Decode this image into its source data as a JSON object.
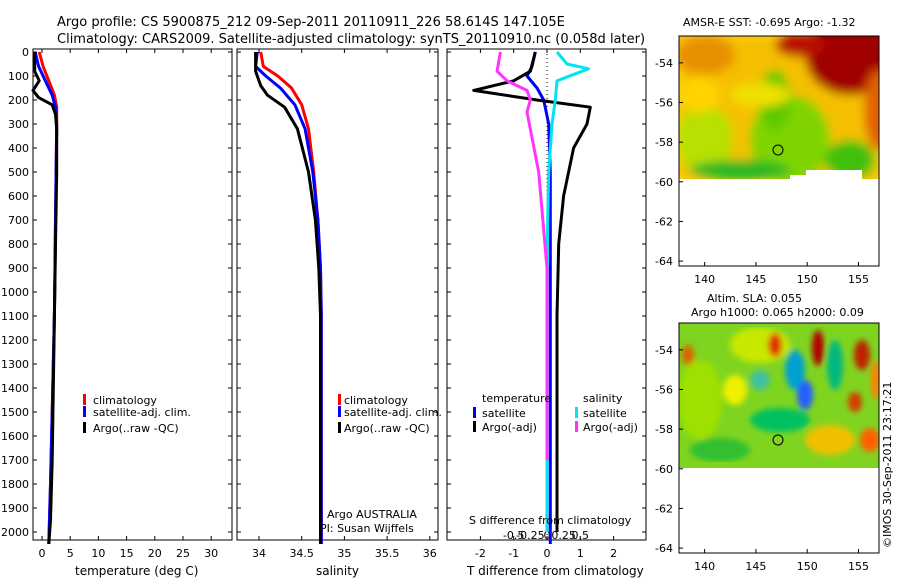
{
  "header": {
    "line1": "Argo profile: CS 5900875_212 09-Sep-2011 20110911_226 58.614S 147.105E",
    "line2": "Climatology: CARS2009. Satellite-adjusted climatology: synTS_20110910.nc (0.058d later)"
  },
  "colors": {
    "climatology": "#ff0000",
    "satellite": "#0000ff",
    "argo": "#000000",
    "satellite_s": "#00e5ee",
    "argo_s": "#ff33ff"
  },
  "depth_axis": {
    "ticks": [
      "0",
      "100",
      "200",
      "300",
      "400",
      "500",
      "600",
      "700",
      "800",
      "900",
      "1000",
      "1100",
      "1200",
      "1300",
      "1400",
      "1500",
      "1600",
      "1700",
      "1800",
      "1900",
      "2000"
    ]
  },
  "temperature_panel": {
    "xlabel": "temperature (deg C)",
    "xticks": [
      "0",
      "5",
      "10",
      "15",
      "20",
      "25",
      "30"
    ],
    "legend": [
      "climatology",
      "satellite-adj. clim.",
      "Argo(..raw -QC)"
    ]
  },
  "salinity_panel": {
    "xlabel": "salinity",
    "xticks": [
      "34",
      "34.5",
      "35",
      "35.5",
      "36"
    ],
    "legend": [
      "climatology",
      "satellite-adj. clim.",
      "Argo(..raw -QC)"
    ],
    "credit1": "Argo AUSTRALIA",
    "credit2": "PI: Susan Wijffels"
  },
  "difference_panel": {
    "xlabel": "T difference from climatology",
    "top_label": "S difference from climatology",
    "xticks_t": [
      "-2",
      "-1",
      "0",
      "1",
      "2"
    ],
    "xticks_s": [
      "-0.5",
      "-0.25",
      "0",
      "0.25",
      "0.5"
    ],
    "legend_t_head": "temperature",
    "legend_s_head": "salinity",
    "legend_t": [
      "satellite",
      "Argo(-adj)"
    ],
    "legend_s": [
      "satellite",
      "Argo(-adj)"
    ]
  },
  "map_sst": {
    "title": "AMSR-E SST: -0.695 Argo: -1.32",
    "xticks": [
      "140",
      "145",
      "150",
      "155"
    ],
    "yticks": [
      "-54",
      "-56",
      "-58",
      "-60",
      "-62",
      "-64"
    ]
  },
  "map_sla": {
    "title1": "Altim. SLA: 0.055",
    "title2": "Argo h1000: 0.065 h2000: 0.09",
    "xticks": [
      "140",
      "145",
      "150",
      "155"
    ],
    "yticks": [
      "-54",
      "-56",
      "-58",
      "-60",
      "-62",
      "-64"
    ]
  },
  "stamp": "©IMOS 30-Sep-2011 23:17:21",
  "chart_data": [
    {
      "type": "line",
      "xlabel": "temperature (deg C)",
      "xlim": [
        -2,
        31
      ],
      "ylim": [
        2050,
        0
      ],
      "series": [
        {
          "name": "climatology",
          "color": "#ff0000",
          "x": [
            -0.5,
            0.2,
            1.2,
            2.2,
            2.6,
            2.6,
            2.5,
            2.4,
            2.3,
            2.2,
            2.0,
            1.8,
            1.5,
            1.2
          ],
          "y": [
            0,
            60,
            120,
            180,
            230,
            300,
            500,
            700,
            900,
            1100,
            1300,
            1500,
            1800,
            2050
          ]
        },
        {
          "name": "satellite-adj. clim.",
          "color": "#0000ff",
          "x": [
            -1.2,
            -0.6,
            0.6,
            1.8,
            2.4,
            2.6,
            2.5,
            2.4,
            2.3,
            2.2,
            2.0,
            1.8,
            1.5,
            1.2
          ],
          "y": [
            0,
            60,
            120,
            180,
            230,
            300,
            500,
            700,
            900,
            1100,
            1300,
            1500,
            1800,
            2050
          ]
        },
        {
          "name": "Argo(..raw -QC)",
          "color": "#000000",
          "x": [
            -1.3,
            -1.3,
            -0.5,
            -1.6,
            -0.6,
            1.8,
            2.4,
            2.6,
            2.6,
            2.4,
            2.2,
            2.0,
            1.8,
            1.5,
            1.2
          ],
          "y": [
            0,
            80,
            120,
            160,
            190,
            220,
            260,
            320,
            500,
            800,
            1100,
            1400,
            1700,
            1950,
            2050
          ]
        }
      ]
    },
    {
      "type": "line",
      "xlabel": "salinity",
      "xlim": [
        33.85,
        36.05
      ],
      "ylim": [
        2050,
        0
      ],
      "series": [
        {
          "name": "climatology",
          "color": "#ff0000",
          "x": [
            34.02,
            34.05,
            34.22,
            34.38,
            34.5,
            34.58,
            34.64,
            34.69,
            34.72,
            34.73,
            34.73,
            34.73,
            34.73,
            34.73
          ],
          "y": [
            0,
            60,
            100,
            150,
            220,
            320,
            500,
            700,
            900,
            1100,
            1300,
            1500,
            1800,
            2050
          ]
        },
        {
          "name": "satellite-adj. clim.",
          "color": "#0000ff",
          "x": [
            33.98,
            33.96,
            34.08,
            34.25,
            34.42,
            34.54,
            34.63,
            34.69,
            34.72,
            34.73,
            34.73,
            34.73,
            34.73,
            34.73
          ],
          "y": [
            0,
            60,
            100,
            150,
            220,
            320,
            500,
            700,
            900,
            1100,
            1300,
            1500,
            1800,
            2050
          ]
        },
        {
          "name": "Argo(..raw -QC)",
          "color": "#000000",
          "x": [
            33.96,
            33.96,
            34.02,
            34.1,
            34.3,
            34.45,
            34.58,
            34.66,
            34.7,
            34.72,
            34.72,
            34.72,
            34.72,
            34.72
          ],
          "y": [
            0,
            80,
            140,
            180,
            230,
            320,
            500,
            700,
            900,
            1100,
            1300,
            1500,
            1800,
            2050
          ]
        }
      ]
    },
    {
      "type": "line",
      "xlabel": "T difference from climatology",
      "xlim": [
        -2.6,
        2.8
      ],
      "ylim": [
        2050,
        0
      ],
      "series": [
        {
          "name": "temperature satellite",
          "color": "#0000ff",
          "x": [
            -0.35,
            -0.45,
            -0.6,
            -0.3,
            -0.1,
            0.05,
            0.1,
            0.1,
            0.1,
            0.1,
            0.1,
            0.1,
            0.1,
            0.1
          ],
          "y": [
            0,
            60,
            100,
            150,
            200,
            300,
            500,
            700,
            900,
            1100,
            1300,
            1500,
            1800,
            2050
          ]
        },
        {
          "name": "temperature Argo(-adj)",
          "color": "#000000",
          "x": [
            -0.35,
            -0.5,
            -1.0,
            -2.2,
            -0.3,
            1.3,
            1.2,
            0.8,
            0.5,
            0.35,
            0.3,
            0.3,
            0.3,
            0.3
          ],
          "y": [
            0,
            80,
            120,
            160,
            200,
            230,
            300,
            400,
            600,
            800,
            1100,
            1400,
            1700,
            2000
          ]
        },
        {
          "name": "salinity satellite",
          "color": "#00e5ee",
          "x": [
            0.3,
            0.6,
            1.25,
            0.3,
            0.25,
            0.15,
            0.05,
            0.02,
            0.0,
            0.0,
            0.0,
            0.0,
            0.0
          ],
          "y": [
            0,
            50,
            70,
            120,
            200,
            300,
            500,
            700,
            1000,
            1300,
            1600,
            1900,
            2000
          ]
        },
        {
          "name": "salinity Argo(-adj)",
          "color": "#ff33ff",
          "x": [
            -1.4,
            -1.5,
            -1.2,
            -0.6,
            -0.5,
            -0.6,
            -0.25,
            0.0,
            0.0,
            0.0
          ],
          "y": [
            0,
            80,
            120,
            160,
            200,
            250,
            500,
            900,
            1300,
            1700
          ]
        }
      ]
    }
  ]
}
